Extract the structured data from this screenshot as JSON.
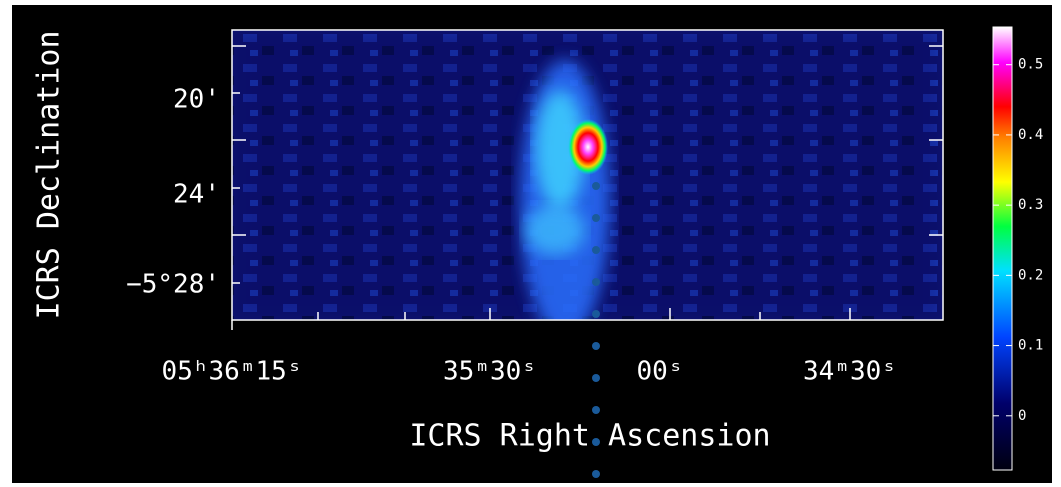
{
  "image": {
    "y_axis_label": "ICRS Declination",
    "x_axis_label": "ICRS Right Ascension",
    "y_ticks": [
      "20'",
      "24'",
      "−5°28'"
    ],
    "x_ticks": [
      "05ʰ36ᵐ15ˢ",
      "35ᵐ30ˢ",
      "00ˢ",
      "34ᵐ30ˢ"
    ]
  },
  "colorbar": {
    "ticks": [
      0.5,
      0.4,
      0.3,
      0.2,
      0.1,
      0
    ],
    "lim": [
      -0.0772,
      0.5537
    ]
  }
}
